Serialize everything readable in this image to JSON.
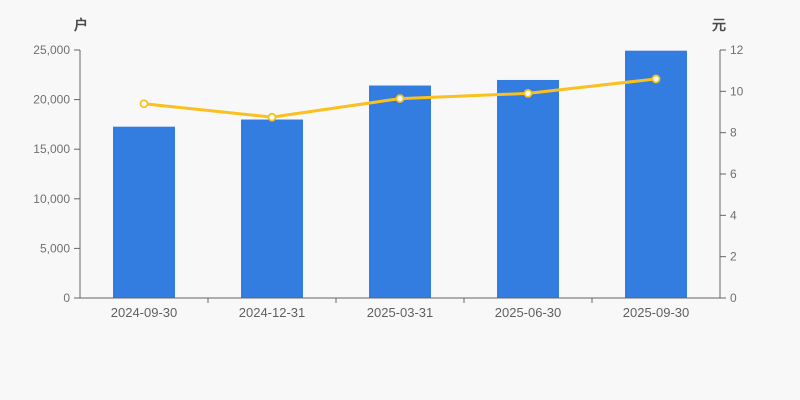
{
  "page": {
    "background_color": "#f8f8f8"
  },
  "chart_data": {
    "type": "bar",
    "title": "",
    "legend": "none",
    "grid": false,
    "categories": [
      "2024-09-30",
      "2024-12-31",
      "2025-03-31",
      "2025-06-30",
      "2025-09-30"
    ],
    "series": [
      {
        "id": "bar-series",
        "type": "bar",
        "axis": "left",
        "color": "#337ce0",
        "values": [
          17270,
          17990,
          21420,
          21980,
          24930
        ]
      },
      {
        "id": "line-series",
        "type": "line",
        "axis": "right",
        "color": "#f9c01f",
        "marker_fill": "#ffffff",
        "values": [
          9.4,
          8.75,
          9.65,
          9.9,
          10.6
        ]
      }
    ],
    "left_axis": {
      "title": "户",
      "min": 0,
      "max": 25000,
      "tick_labels": [
        "0",
        "5,000",
        "10,000",
        "15,000",
        "20,000",
        "25,000"
      ]
    },
    "right_axis": {
      "title": "元",
      "min": 0,
      "max": 12,
      "tick_labels": [
        "0",
        "2",
        "4",
        "6",
        "8",
        "10",
        "12"
      ]
    },
    "axis_color": "#666666",
    "tick_label_color": "#707070",
    "x_label_color": "#606060",
    "axis_title_color": "#4a4a4a"
  }
}
